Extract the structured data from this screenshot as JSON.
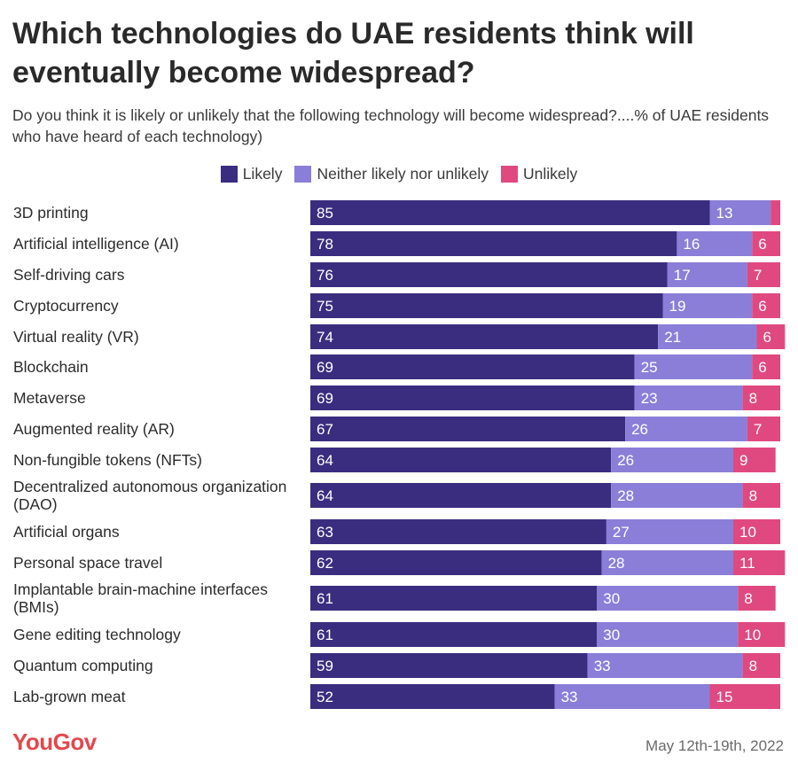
{
  "title": "Which technologies do UAE residents think will eventually become widespread?",
  "subtitle": "Do you think it is likely or unlikely that the following technology will become widespread?....% of UAE residents who have heard of each technology)",
  "legend": {
    "likely": "Likely",
    "neither": "Neither likely nor unlikely",
    "unlikely": "Unlikely"
  },
  "colors": {
    "likely": "#3a2d7f",
    "neither": "#8b7ed8",
    "unlikely": "#e0497f"
  },
  "footer": {
    "logo": "YouGov",
    "date": "May 12th-19th, 2022"
  },
  "chart_data": {
    "type": "bar",
    "orientation": "horizontal",
    "stacked": true,
    "categories": [
      "3D printing",
      "Artificial intelligence (AI)",
      "Self-driving cars",
      "Cryptocurrency",
      "Virtual reality (VR)",
      "Blockchain",
      "Metaverse",
      "Augmented reality (AR)",
      "Non-fungible tokens (NFTs)",
      "Decentralized autonomous organization (DAO)",
      "Artificial organs",
      "Personal space travel",
      "Implantable brain-machine interfaces (BMIs)",
      "Gene editing technology",
      "Quantum computing",
      "Lab-grown meat"
    ],
    "series": [
      {
        "name": "Likely",
        "values": [
          85,
          78,
          76,
          75,
          74,
          69,
          69,
          67,
          64,
          64,
          63,
          62,
          61,
          61,
          59,
          52
        ]
      },
      {
        "name": "Neither likely nor unlikely",
        "values": [
          13,
          16,
          17,
          19,
          21,
          25,
          23,
          26,
          26,
          28,
          27,
          28,
          30,
          30,
          33,
          33
        ]
      },
      {
        "name": "Unlikely",
        "values": [
          2,
          6,
          7,
          6,
          6,
          6,
          8,
          7,
          9,
          8,
          10,
          11,
          8,
          10,
          8,
          15
        ]
      }
    ],
    "labels_shown": [
      [
        85,
        78,
        76,
        75,
        74,
        69,
        69,
        67,
        64,
        64,
        63,
        62,
        61,
        61,
        59,
        52
      ],
      [
        13,
        16,
        17,
        19,
        21,
        25,
        23,
        26,
        26,
        28,
        27,
        28,
        30,
        30,
        33,
        33
      ],
      [
        null,
        6,
        7,
        6,
        6,
        6,
        8,
        7,
        9,
        8,
        10,
        11,
        8,
        10,
        8,
        15
      ]
    ],
    "xlim": [
      0,
      100
    ],
    "grid": false,
    "legend_position": "top-center"
  }
}
